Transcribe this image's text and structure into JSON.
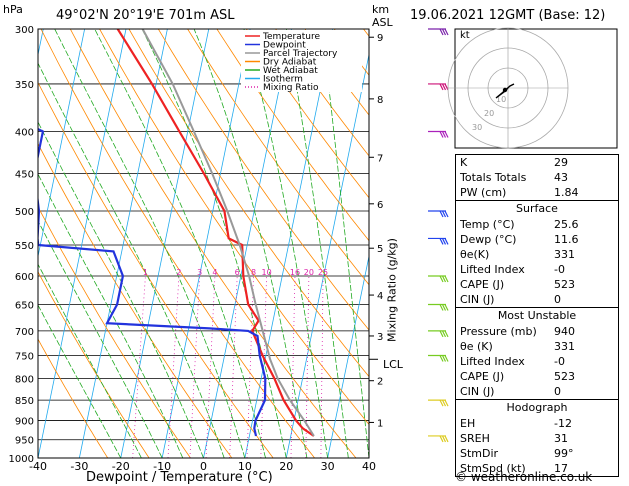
{
  "header": {
    "location": "49°02'N  20°19'E  701m  ASL",
    "datetime": "19.06.2021  12GMT  (Base: 12)",
    "hpa_label": "hPa",
    "km_label": "km",
    "asl_label": "ASL",
    "mixing_ratio_axis_label": "Mixing Ratio (g/kg)",
    "x_axis_label": "Dewpoint / Temperature (°C)",
    "lcl_label": "LCL",
    "hodograph_kt": "kt"
  },
  "legend": [
    {
      "label": "Temperature",
      "color": "#ee2222",
      "style": "solid"
    },
    {
      "label": "Dewpoint",
      "color": "#2233dd",
      "style": "solid"
    },
    {
      "label": "Parcel Trajectory",
      "color": "#999999",
      "style": "solid"
    },
    {
      "label": "Dry Adiabat",
      "color": "#ff8800",
      "style": "solid"
    },
    {
      "label": "Wet Adiabat",
      "color": "#22aa22",
      "style": "solid"
    },
    {
      "label": "Isotherm",
      "color": "#22aaee",
      "style": "solid"
    },
    {
      "label": "Mixing Ratio",
      "color": "#dd22aa",
      "style": "dotted"
    }
  ],
  "chart_data": {
    "type": "line",
    "title": "",
    "xlabel": "Dewpoint / Temperature (°C)",
    "ylabel": "hPa",
    "xlim": [
      -40,
      40
    ],
    "ylim": [
      1000,
      300
    ],
    "pressure_ticks": [
      300,
      350,
      400,
      450,
      500,
      550,
      600,
      650,
      700,
      750,
      800,
      850,
      900,
      950,
      1000
    ],
    "temp_ticks": [
      -40,
      -30,
      -20,
      -10,
      0,
      10,
      20,
      30,
      40
    ],
    "height_ticks_km": [
      {
        "label": "9",
        "p": 307
      },
      {
        "label": "8",
        "p": 365
      },
      {
        "label": "7",
        "p": 430
      },
      {
        "label": "6",
        "p": 490
      },
      {
        "label": "5",
        "p": 555
      },
      {
        "label": "4",
        "p": 633
      },
      {
        "label": "3",
        "p": 710
      },
      {
        "label": "2",
        "p": 805
      },
      {
        "label": "1",
        "p": 905
      }
    ],
    "lcl_pressure": 758,
    "mixing_ratio_labels": [
      "1",
      "2",
      "3",
      "4",
      "6",
      "8",
      "10",
      "16",
      "20",
      "25"
    ],
    "series": [
      {
        "name": "Temperature",
        "color": "#ee2222",
        "p": [
          940,
          920,
          900,
          850,
          800,
          750,
          700,
          680,
          650,
          600,
          550,
          540,
          500,
          450,
          400,
          350,
          300
        ],
        "t": [
          25.6,
          22.5,
          20.5,
          16.5,
          13.2,
          9.2,
          5.5,
          6.5,
          3.2,
          0.6,
          -1.2,
          -4.8,
          -7.2,
          -14.0,
          -22.0,
          -31.0,
          -42.0
        ]
      },
      {
        "name": "Dewpoint",
        "color": "#2233dd",
        "p": [
          940,
          920,
          900,
          850,
          800,
          750,
          710,
          700,
          695,
          685,
          650,
          600,
          560,
          550,
          540,
          500,
          450,
          400,
          380,
          360,
          350,
          320,
          310,
          300
        ],
        "t": [
          11.6,
          10.8,
          10.7,
          12.0,
          11.0,
          8.5,
          7.0,
          4.5,
          -5.0,
          -30.0,
          -28.5,
          -28.5,
          -32.0,
          -50.5,
          -51.0,
          -52.0,
          -55.0,
          -55.0,
          -65.0,
          -62.0,
          -65.0,
          -66.0,
          -73.0,
          -74.0
        ]
      },
      {
        "name": "Parcel Trajectory",
        "color": "#999999",
        "p": [
          940,
          900,
          850,
          800,
          758,
          700,
          650,
          600,
          550,
          500,
          450,
          400,
          350,
          300
        ],
        "t": [
          25.6,
          22.5,
          18.0,
          14.0,
          11.2,
          8.0,
          5.0,
          2.0,
          -1.8,
          -6.5,
          -12.0,
          -18.5,
          -26.0,
          -36.0
        ]
      }
    ]
  },
  "wind_barbs": [
    {
      "p": 300,
      "color": "#7a22aa"
    },
    {
      "p": 350,
      "color": "#cc1177"
    },
    {
      "p": 400,
      "color": "#aa22bb"
    },
    {
      "p": 500,
      "color": "#2244ee"
    },
    {
      "p": 540,
      "color": "#2244ee"
    },
    {
      "p": 600,
      "color": "#77cc22"
    },
    {
      "p": 650,
      "color": "#77cc22"
    },
    {
      "p": 700,
      "color": "#77cc22"
    },
    {
      "p": 750,
      "color": "#77cc22"
    },
    {
      "p": 850,
      "color": "#ddcc22"
    },
    {
      "p": 940,
      "color": "#ddcc22"
    }
  ],
  "indices": {
    "top": [
      {
        "label": "K",
        "value": "29"
      },
      {
        "label": "Totals Totals",
        "value": "43"
      },
      {
        "label": "PW (cm)",
        "value": "1.84"
      }
    ],
    "surface_title": "Surface",
    "surface": [
      {
        "label": "Temp (°C)",
        "value": "25.6"
      },
      {
        "label": "Dewp (°C)",
        "value": "11.6"
      },
      {
        "label": "θe(K)",
        "value": "331"
      },
      {
        "label": "Lifted Index",
        "value": "-0"
      },
      {
        "label": "CAPE (J)",
        "value": "523"
      },
      {
        "label": "CIN (J)",
        "value": "0"
      }
    ],
    "unstable_title": "Most Unstable",
    "unstable": [
      {
        "label": "Pressure (mb)",
        "value": "940"
      },
      {
        "label": "θe (K)",
        "value": "331"
      },
      {
        "label": "Lifted Index",
        "value": "-0"
      },
      {
        "label": "CAPE (J)",
        "value": "523"
      },
      {
        "label": "CIN (J)",
        "value": "0"
      }
    ],
    "hodograph_title": "Hodograph",
    "hodograph": [
      {
        "label": "EH",
        "value": "-12"
      },
      {
        "label": "SREH",
        "value": "31"
      },
      {
        "label": "StmDir",
        "value": "99°"
      },
      {
        "label": "StmSpd (kt)",
        "value": "17"
      }
    ]
  },
  "hodograph_rings": [
    "10",
    "20",
    "30"
  ],
  "footer": "© weatheronline.co.uk"
}
